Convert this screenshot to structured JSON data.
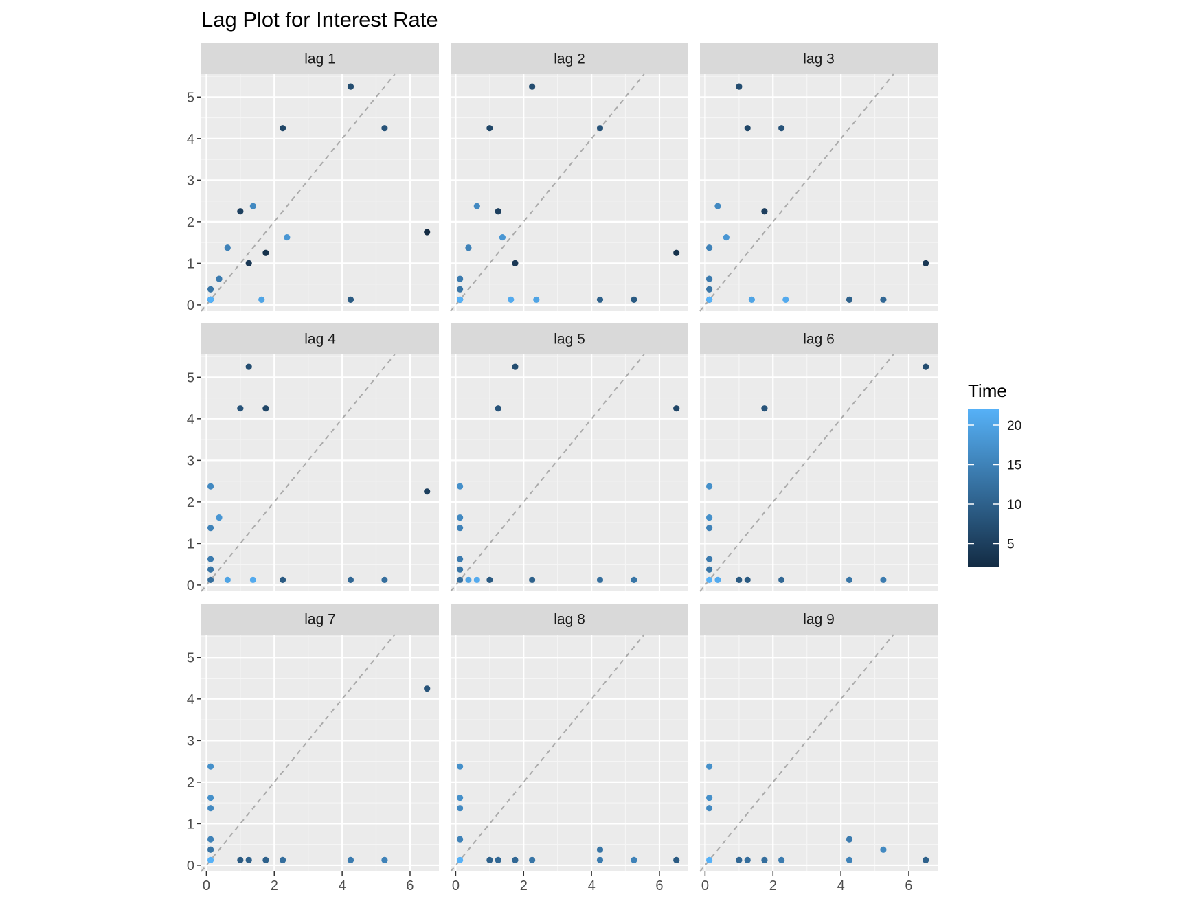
{
  "chart_data": {
    "type": "scatter",
    "title": "Lag Plot for Interest Rate",
    "xlabel": "",
    "ylabel": "",
    "xlim": [
      -0.15,
      6.85
    ],
    "ylim": [
      -0.15,
      5.55
    ],
    "x_ticks": [
      0,
      2,
      4,
      6
    ],
    "y_ticks": [
      0,
      1,
      2,
      3,
      4,
      5
    ],
    "grid": true,
    "reference_line": "y = x (dashed)",
    "legend": {
      "title": "Time",
      "type": "colorbar",
      "placement": "right",
      "min": 2,
      "max": 22,
      "ticks": [
        5,
        10,
        15,
        20
      ],
      "low_color": "#132B43",
      "high_color": "#56B1F7"
    },
    "panels": [
      {
        "label": "lag 1",
        "points": [
          {
            "x": 6.5,
            "y": 1.75,
            "t": 2
          },
          {
            "x": 1.75,
            "y": 1.25,
            "t": 3
          },
          {
            "x": 1.25,
            "y": 1.0,
            "t": 4
          },
          {
            "x": 1.0,
            "y": 2.25,
            "t": 5
          },
          {
            "x": 2.25,
            "y": 4.25,
            "t": 6
          },
          {
            "x": 4.25,
            "y": 5.25,
            "t": 7
          },
          {
            "x": 5.25,
            "y": 4.25,
            "t": 8
          },
          {
            "x": 4.25,
            "y": 0.125,
            "t": 9
          },
          {
            "x": 0.125,
            "y": 0.125,
            "t": 10
          },
          {
            "x": 0.125,
            "y": 0.125,
            "t": 11
          },
          {
            "x": 0.125,
            "y": 0.125,
            "t": 12
          },
          {
            "x": 0.125,
            "y": 0.375,
            "t": 13
          },
          {
            "x": 0.375,
            "y": 0.625,
            "t": 14
          },
          {
            "x": 0.625,
            "y": 1.375,
            "t": 15
          },
          {
            "x": 1.375,
            "y": 2.375,
            "t": 16
          },
          {
            "x": 2.375,
            "y": 1.625,
            "t": 18
          },
          {
            "x": 1.625,
            "y": 0.125,
            "t": 20
          },
          {
            "x": 0.125,
            "y": 0.125,
            "t": 21
          },
          {
            "x": 0.125,
            "y": 0.125,
            "t": 22
          }
        ]
      },
      {
        "label": "lag 2",
        "points": [
          {
            "x": 6.5,
            "y": 1.25,
            "t": 3
          },
          {
            "x": 1.75,
            "y": 1.0,
            "t": 4
          },
          {
            "x": 1.25,
            "y": 2.25,
            "t": 5
          },
          {
            "x": 1.0,
            "y": 4.25,
            "t": 6
          },
          {
            "x": 2.25,
            "y": 5.25,
            "t": 7
          },
          {
            "x": 4.25,
            "y": 4.25,
            "t": 8
          },
          {
            "x": 5.25,
            "y": 0.125,
            "t": 9
          },
          {
            "x": 4.25,
            "y": 0.125,
            "t": 10
          },
          {
            "x": 0.125,
            "y": 0.125,
            "t": 11
          },
          {
            "x": 0.125,
            "y": 0.125,
            "t": 12
          },
          {
            "x": 0.125,
            "y": 0.375,
            "t": 13
          },
          {
            "x": 0.125,
            "y": 0.625,
            "t": 14
          },
          {
            "x": 0.375,
            "y": 1.375,
            "t": 15
          },
          {
            "x": 0.625,
            "y": 2.375,
            "t": 16
          },
          {
            "x": 1.375,
            "y": 1.625,
            "t": 18
          },
          {
            "x": 2.375,
            "y": 0.125,
            "t": 20
          },
          {
            "x": 1.625,
            "y": 0.125,
            "t": 21
          },
          {
            "x": 0.125,
            "y": 0.125,
            "t": 22
          }
        ]
      },
      {
        "label": "lag 3",
        "points": [
          {
            "x": 6.5,
            "y": 1.0,
            "t": 4
          },
          {
            "x": 1.75,
            "y": 2.25,
            "t": 5
          },
          {
            "x": 1.25,
            "y": 4.25,
            "t": 6
          },
          {
            "x": 1.0,
            "y": 5.25,
            "t": 7
          },
          {
            "x": 2.25,
            "y": 4.25,
            "t": 8
          },
          {
            "x": 4.25,
            "y": 0.125,
            "t": 10
          },
          {
            "x": 5.25,
            "y": 0.125,
            "t": 11
          },
          {
            "x": 0.125,
            "y": 0.125,
            "t": 12
          },
          {
            "x": 0.125,
            "y": 0.375,
            "t": 13
          },
          {
            "x": 0.125,
            "y": 0.625,
            "t": 14
          },
          {
            "x": 0.125,
            "y": 1.375,
            "t": 15
          },
          {
            "x": 0.375,
            "y": 2.375,
            "t": 16
          },
          {
            "x": 0.625,
            "y": 1.625,
            "t": 18
          },
          {
            "x": 1.375,
            "y": 0.125,
            "t": 20
          },
          {
            "x": 2.375,
            "y": 0.125,
            "t": 21
          },
          {
            "x": 0.125,
            "y": 0.125,
            "t": 22
          }
        ]
      },
      {
        "label": "lag 4",
        "points": [
          {
            "x": 6.5,
            "y": 2.25,
            "t": 5
          },
          {
            "x": 1.75,
            "y": 4.25,
            "t": 6
          },
          {
            "x": 1.25,
            "y": 5.25,
            "t": 7
          },
          {
            "x": 1.0,
            "y": 4.25,
            "t": 8
          },
          {
            "x": 2.25,
            "y": 0.125,
            "t": 9
          },
          {
            "x": 4.25,
            "y": 0.125,
            "t": 11
          },
          {
            "x": 5.25,
            "y": 0.125,
            "t": 12
          },
          {
            "x": 0.125,
            "y": 0.375,
            "t": 13
          },
          {
            "x": 0.125,
            "y": 0.625,
            "t": 14
          },
          {
            "x": 0.125,
            "y": 1.375,
            "t": 15
          },
          {
            "x": 0.125,
            "y": 2.375,
            "t": 16
          },
          {
            "x": 0.375,
            "y": 1.625,
            "t": 18
          },
          {
            "x": 0.625,
            "y": 0.125,
            "t": 20
          },
          {
            "x": 1.375,
            "y": 0.125,
            "t": 21
          },
          {
            "x": 0.125,
            "y": 0.125,
            "t": 12
          }
        ]
      },
      {
        "label": "lag 5",
        "points": [
          {
            "x": 6.5,
            "y": 4.25,
            "t": 6
          },
          {
            "x": 1.75,
            "y": 5.25,
            "t": 7
          },
          {
            "x": 1.25,
            "y": 4.25,
            "t": 8
          },
          {
            "x": 1.0,
            "y": 0.125,
            "t": 9
          },
          {
            "x": 2.25,
            "y": 0.125,
            "t": 10
          },
          {
            "x": 4.25,
            "y": 0.125,
            "t": 12
          },
          {
            "x": 5.25,
            "y": 0.125,
            "t": 13
          },
          {
            "x": 0.125,
            "y": 0.375,
            "t": 13
          },
          {
            "x": 0.125,
            "y": 0.625,
            "t": 14
          },
          {
            "x": 0.125,
            "y": 1.375,
            "t": 15
          },
          {
            "x": 0.125,
            "y": 1.625,
            "t": 16
          },
          {
            "x": 0.125,
            "y": 2.375,
            "t": 17
          },
          {
            "x": 0.375,
            "y": 0.125,
            "t": 20
          },
          {
            "x": 0.625,
            "y": 0.125,
            "t": 21
          },
          {
            "x": 0.125,
            "y": 0.125,
            "t": 12
          }
        ]
      },
      {
        "label": "lag 6",
        "points": [
          {
            "x": 6.5,
            "y": 5.25,
            "t": 7
          },
          {
            "x": 1.75,
            "y": 4.25,
            "t": 8
          },
          {
            "x": 1.0,
            "y": 0.125,
            "t": 9
          },
          {
            "x": 1.25,
            "y": 0.125,
            "t": 9
          },
          {
            "x": 2.25,
            "y": 0.125,
            "t": 11
          },
          {
            "x": 4.25,
            "y": 0.125,
            "t": 13
          },
          {
            "x": 5.25,
            "y": 0.125,
            "t": 14
          },
          {
            "x": 0.125,
            "y": 0.375,
            "t": 13
          },
          {
            "x": 0.125,
            "y": 0.625,
            "t": 14
          },
          {
            "x": 0.125,
            "y": 1.375,
            "t": 15
          },
          {
            "x": 0.125,
            "y": 1.625,
            "t": 17
          },
          {
            "x": 0.125,
            "y": 2.375,
            "t": 17
          },
          {
            "x": 0.375,
            "y": 0.125,
            "t": 21
          },
          {
            "x": 0.125,
            "y": 0.125,
            "t": 22
          }
        ]
      },
      {
        "label": "lag 7",
        "points": [
          {
            "x": 6.5,
            "y": 4.25,
            "t": 8
          },
          {
            "x": 1.0,
            "y": 0.125,
            "t": 9
          },
          {
            "x": 1.25,
            "y": 0.125,
            "t": 10
          },
          {
            "x": 1.75,
            "y": 0.125,
            "t": 10
          },
          {
            "x": 2.25,
            "y": 0.125,
            "t": 12
          },
          {
            "x": 4.25,
            "y": 0.125,
            "t": 14
          },
          {
            "x": 5.25,
            "y": 0.125,
            "t": 15
          },
          {
            "x": 0.125,
            "y": 0.375,
            "t": 13
          },
          {
            "x": 0.125,
            "y": 0.625,
            "t": 15
          },
          {
            "x": 0.125,
            "y": 1.375,
            "t": 16
          },
          {
            "x": 0.125,
            "y": 1.625,
            "t": 17
          },
          {
            "x": 0.125,
            "y": 2.375,
            "t": 17
          },
          {
            "x": 0.125,
            "y": 0.125,
            "t": 22
          }
        ]
      },
      {
        "label": "lag 8",
        "points": [
          {
            "x": 6.5,
            "y": 0.125,
            "t": 9
          },
          {
            "x": 1.0,
            "y": 0.125,
            "t": 10
          },
          {
            "x": 1.25,
            "y": 0.125,
            "t": 11
          },
          {
            "x": 1.75,
            "y": 0.125,
            "t": 11
          },
          {
            "x": 2.25,
            "y": 0.125,
            "t": 13
          },
          {
            "x": 4.25,
            "y": 0.375,
            "t": 13
          },
          {
            "x": 4.25,
            "y": 0.125,
            "t": 14
          },
          {
            "x": 5.25,
            "y": 0.125,
            "t": 15
          },
          {
            "x": 0.125,
            "y": 0.625,
            "t": 15
          },
          {
            "x": 0.125,
            "y": 1.375,
            "t": 16
          },
          {
            "x": 0.125,
            "y": 1.625,
            "t": 17
          },
          {
            "x": 0.125,
            "y": 2.375,
            "t": 17
          },
          {
            "x": 0.125,
            "y": 0.125,
            "t": 22
          }
        ]
      },
      {
        "label": "lag 9",
        "points": [
          {
            "x": 6.5,
            "y": 0.125,
            "t": 10
          },
          {
            "x": 1.0,
            "y": 0.125,
            "t": 11
          },
          {
            "x": 1.25,
            "y": 0.125,
            "t": 12
          },
          {
            "x": 1.75,
            "y": 0.125,
            "t": 12
          },
          {
            "x": 2.25,
            "y": 0.125,
            "t": 14
          },
          {
            "x": 4.25,
            "y": 0.625,
            "t": 14
          },
          {
            "x": 4.25,
            "y": 0.125,
            "t": 15
          },
          {
            "x": 5.25,
            "y": 0.375,
            "t": 16
          },
          {
            "x": 0.125,
            "y": 1.375,
            "t": 16
          },
          {
            "x": 0.125,
            "y": 1.625,
            "t": 17
          },
          {
            "x": 0.125,
            "y": 2.375,
            "t": 17
          },
          {
            "x": 0.125,
            "y": 0.125,
            "t": 22
          }
        ]
      }
    ]
  }
}
